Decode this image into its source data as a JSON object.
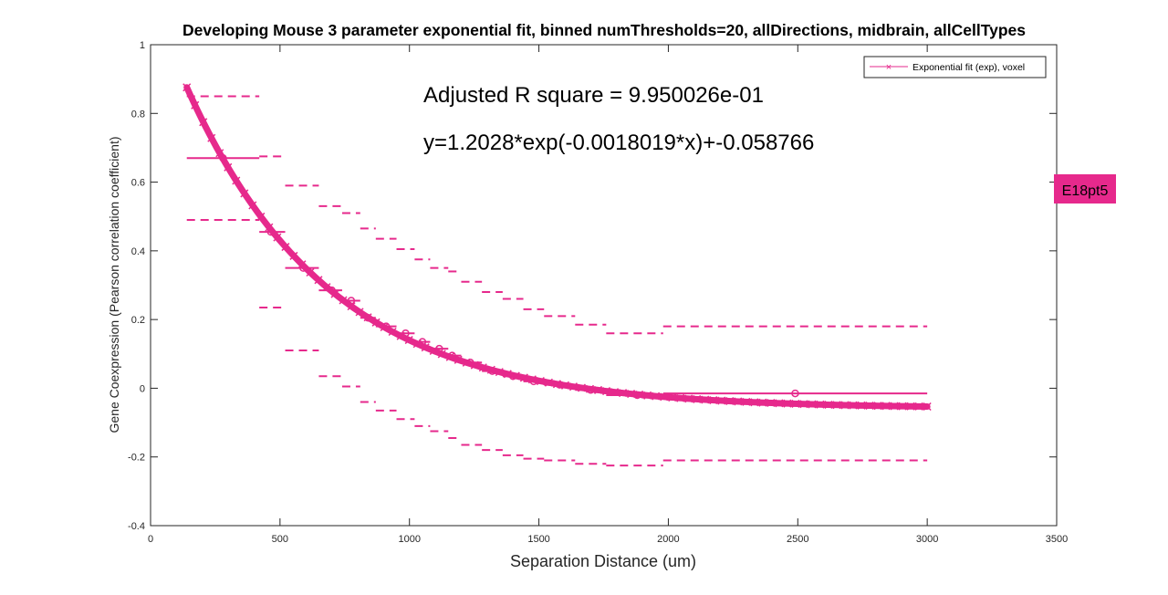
{
  "chart_data": {
    "type": "line",
    "title": "Developing Mouse 3 parameter exponential fit, binned numThresholds=20, allDirections, midbrain, allCellTypes",
    "xlabel": "Separation Distance (um)",
    "ylabel": "Gene Coexpression (Pearson correlation coefficient)",
    "xlim": [
      0,
      3500
    ],
    "ylim": [
      -0.4,
      1
    ],
    "x_ticks": [
      "0",
      "500",
      "1000",
      "1500",
      "2000",
      "2500",
      "3000",
      "3500"
    ],
    "x_tick_values": [
      0,
      500,
      1000,
      1500,
      2000,
      2500,
      3000,
      3500
    ],
    "y_ticks": [
      "-0.4",
      "-0.2",
      "0",
      "0.2",
      "0.4",
      "0.6",
      "0.8",
      "1"
    ],
    "y_tick_values": [
      -0.4,
      -0.2,
      0,
      0.2,
      0.4,
      0.6,
      0.8,
      1
    ],
    "grid": false,
    "legend_position": "top-right",
    "legend": [
      "Exponential fit (exp), voxel"
    ],
    "annotations": {
      "r_square": "Adjusted R square = 9.950026e-01",
      "equation": "y=1.2028*exp(-0.0018019*x)+-0.058766",
      "tag": "E18pt5"
    },
    "fit": {
      "a": 1.2028,
      "b": -0.0018019,
      "c": -0.058766,
      "x_min": 140,
      "x_max": 3000
    },
    "color": "#e6298c",
    "bins": [
      {
        "x0": 140,
        "x1": 420,
        "mean": 0.67,
        "upper": 0.85,
        "lower": 0.49
      },
      {
        "x0": 420,
        "x1": 520,
        "mean": 0.455,
        "upper": 0.675,
        "lower": 0.235
      },
      {
        "x0": 520,
        "x1": 650,
        "mean": 0.35,
        "upper": 0.59,
        "lower": 0.11
      },
      {
        "x0": 650,
        "x1": 740,
        "mean": 0.285,
        "upper": 0.53,
        "lower": 0.035
      },
      {
        "x0": 740,
        "x1": 810,
        "mean": 0.255,
        "upper": 0.51,
        "lower": 0.005
      },
      {
        "x0": 810,
        "x1": 870,
        "mean": 0.205,
        "upper": 0.465,
        "lower": -0.04
      },
      {
        "x0": 870,
        "x1": 950,
        "mean": 0.18,
        "upper": 0.435,
        "lower": -0.065
      },
      {
        "x0": 950,
        "x1": 1020,
        "mean": 0.16,
        "upper": 0.405,
        "lower": -0.09
      },
      {
        "x0": 1020,
        "x1": 1080,
        "mean": 0.135,
        "upper": 0.375,
        "lower": -0.11
      },
      {
        "x0": 1080,
        "x1": 1150,
        "mean": 0.115,
        "upper": 0.35,
        "lower": -0.125
      },
      {
        "x0": 1150,
        "x1": 1200,
        "mean": 0.095,
        "upper": 0.34,
        "lower": -0.145
      },
      {
        "x0": 1200,
        "x1": 1280,
        "mean": 0.075,
        "upper": 0.31,
        "lower": -0.165
      },
      {
        "x0": 1280,
        "x1": 1360,
        "mean": 0.05,
        "upper": 0.28,
        "lower": -0.18
      },
      {
        "x0": 1360,
        "x1": 1440,
        "mean": 0.035,
        "upper": 0.26,
        "lower": -0.195
      },
      {
        "x0": 1440,
        "x1": 1520,
        "mean": 0.02,
        "upper": 0.23,
        "lower": -0.205
      },
      {
        "x0": 1520,
        "x1": 1640,
        "mean": 0.01,
        "upper": 0.21,
        "lower": -0.21
      },
      {
        "x0": 1640,
        "x1": 1760,
        "mean": -0.005,
        "upper": 0.185,
        "lower": -0.22
      },
      {
        "x0": 1760,
        "x1": 1980,
        "mean": -0.02,
        "upper": 0.16,
        "lower": -0.225
      },
      {
        "x0": 1980,
        "x1": 3000,
        "mean": -0.015,
        "upper": 0.18,
        "lower": -0.21
      }
    ],
    "markers": [
      {
        "x": 280,
        "y": 0.67
      },
      {
        "x": 465,
        "y": 0.455
      },
      {
        "x": 590,
        "y": 0.35
      },
      {
        "x": 700,
        "y": 0.285
      },
      {
        "x": 775,
        "y": 0.255
      },
      {
        "x": 840,
        "y": 0.205
      },
      {
        "x": 910,
        "y": 0.18
      },
      {
        "x": 985,
        "y": 0.16
      },
      {
        "x": 1050,
        "y": 0.135
      },
      {
        "x": 1115,
        "y": 0.115
      },
      {
        "x": 1165,
        "y": 0.095
      },
      {
        "x": 1235,
        "y": 0.075
      },
      {
        "x": 1320,
        "y": 0.05
      },
      {
        "x": 1400,
        "y": 0.035
      },
      {
        "x": 1480,
        "y": 0.02
      },
      {
        "x": 1580,
        "y": 0.01
      },
      {
        "x": 1700,
        "y": -0.005
      },
      {
        "x": 1880,
        "y": -0.02
      },
      {
        "x": 2490,
        "y": -0.015
      }
    ]
  }
}
